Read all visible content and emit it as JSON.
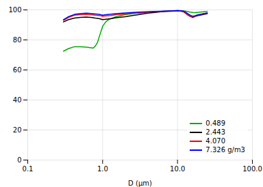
{
  "chart_data": {
    "type": "line",
    "xlabel": "D (µm)",
    "log": "x",
    "grid": true,
    "legend": "lower right",
    "xlim": [
      0.1,
      100.0
    ],
    "xticks": [
      0.1,
      {
        "value": 1.0,
        "label": "1.0"
      },
      {
        "value": 10.0,
        "label": "10.0"
      },
      {
        "value": 100.0,
        "label": "100.0"
      }
    ],
    "ylim": [
      0,
      100
    ],
    "yticks": [
      0,
      20,
      40,
      60,
      80,
      100
    ],
    "series": [
      {
        "name": "0.489",
        "color": "#00aa00",
        "x": [
          0.3,
          0.35,
          0.42,
          0.5,
          0.6,
          0.65,
          0.7,
          0.75,
          0.8,
          0.85,
          0.9,
          1.0,
          1.1,
          1.2,
          1.5,
          2.0,
          2.5,
          3.0,
          4.0,
          5.0,
          6.0,
          7.0,
          8.0,
          9.0,
          10.0,
          11.0,
          12.0,
          13.0,
          14.0,
          15.0,
          16.0,
          17.0,
          18.0,
          20.0,
          25.0
        ],
        "values": [
          72.5,
          74.2,
          75.5,
          75.5,
          75.2,
          75.0,
          74.8,
          74.5,
          76.0,
          78.0,
          82.0,
          89.0,
          92.0,
          93.5,
          95.5,
          96.8,
          97.5,
          98.0,
          98.5,
          98.8,
          99.0,
          99.2,
          99.3,
          99.4,
          99.5,
          99.4,
          99.3,
          99.1,
          98.8,
          98.5,
          98.3,
          98.2,
          98.3,
          98.5,
          99.0
        ]
      },
      {
        "name": "2.443",
        "color": "#000000",
        "x": [
          0.3,
          0.35,
          0.42,
          0.5,
          0.6,
          0.7,
          0.8,
          0.9,
          1.0,
          1.1,
          1.3,
          1.5,
          2.0,
          2.5,
          3.0,
          4.0,
          5.0,
          6.0,
          7.0,
          8.0,
          9.0,
          10.0,
          11.0,
          12.0,
          12.5,
          13.0,
          14.0,
          15.0,
          16.0,
          17.0,
          18.0,
          20.0,
          25.0
        ],
        "values": [
          92.0,
          93.5,
          94.5,
          95.0,
          95.2,
          95.0,
          94.5,
          94.2,
          93.5,
          93.8,
          94.2,
          94.8,
          95.5,
          96.2,
          96.8,
          97.8,
          98.3,
          98.7,
          99.0,
          99.1,
          99.2,
          99.4,
          99.2,
          98.8,
          98.2,
          97.5,
          96.3,
          95.5,
          95.0,
          95.5,
          96.0,
          96.5,
          97.5
        ]
      },
      {
        "name": "4.070",
        "color": "#ff0000",
        "x": [
          0.3,
          0.35,
          0.42,
          0.5,
          0.6,
          0.7,
          0.8,
          0.9,
          1.0,
          1.1,
          1.3,
          1.5,
          2.0,
          2.5,
          3.0,
          4.0,
          5.0,
          6.0,
          7.0,
          8.0,
          9.0,
          10.0,
          11.0,
          12.0,
          12.5,
          13.0,
          14.0,
          15.0,
          16.0,
          17.0,
          18.0,
          20.0,
          25.0
        ],
        "values": [
          93.0,
          95.0,
          96.5,
          96.8,
          97.0,
          96.8,
          96.5,
          96.3,
          95.8,
          96.0,
          96.3,
          96.8,
          97.3,
          97.8,
          98.0,
          98.5,
          98.8,
          99.0,
          99.1,
          99.2,
          99.3,
          99.4,
          99.2,
          98.8,
          98.2,
          97.5,
          96.5,
          95.8,
          95.3,
          95.8,
          96.2,
          96.8,
          97.8
        ]
      },
      {
        "name": "7.326 g/m3",
        "color": "#0000ff",
        "x": [
          0.3,
          0.35,
          0.42,
          0.5,
          0.6,
          0.7,
          0.8,
          0.9,
          1.0,
          1.1,
          1.3,
          1.5,
          2.0,
          2.5,
          3.0,
          4.0,
          5.0,
          6.0,
          7.0,
          8.0,
          9.0,
          10.0,
          11.0,
          12.0,
          12.5,
          13.0,
          14.0,
          15.0,
          16.0,
          17.0,
          18.0,
          20.0,
          25.0
        ],
        "values": [
          93.5,
          95.5,
          97.0,
          97.5,
          97.8,
          97.6,
          97.3,
          97.0,
          96.5,
          96.8,
          97.2,
          97.5,
          98.0,
          98.3,
          98.5,
          98.8,
          99.0,
          99.1,
          99.2,
          99.3,
          99.4,
          99.5,
          99.4,
          99.2,
          98.8,
          98.2,
          97.2,
          96.3,
          95.8,
          96.0,
          96.5,
          97.0,
          98.0
        ]
      }
    ]
  }
}
